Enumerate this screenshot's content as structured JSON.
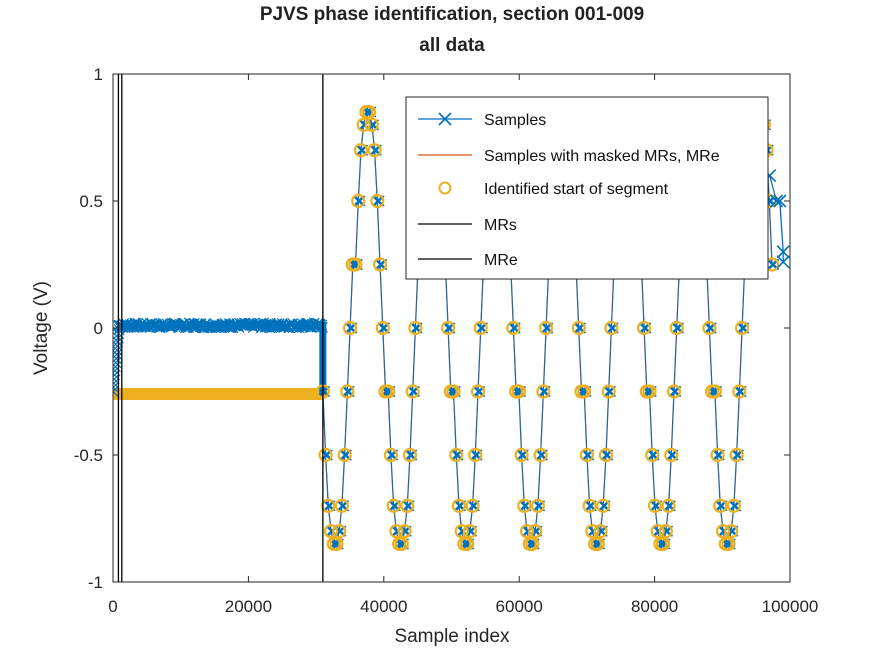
{
  "chart_data": {
    "type": "line",
    "title": "PJVS phase identification, section 001-009",
    "subtitle": "all data",
    "xlabel": "Sample index",
    "ylabel": "Voltage (V)",
    "xlim": [
      0,
      100000
    ],
    "ylim": [
      -1,
      1
    ],
    "x_ticks": [
      0,
      20000,
      40000,
      60000,
      80000,
      100000
    ],
    "x_tick_labels": [
      "0",
      "20000",
      "40000",
      "60000",
      "80000",
      "100000"
    ],
    "y_ticks": [
      -1,
      -0.5,
      0,
      0.5,
      1
    ],
    "y_tick_labels": [
      "-1",
      "-0.5",
      "0",
      "0.5",
      "1"
    ],
    "grid": false,
    "legend_position": "top-right",
    "colors": {
      "samples": "#0072BD",
      "masked": "#D95319",
      "segment_start": "#EDB120",
      "markers": "#000000"
    },
    "series": [
      {
        "name": "Samples",
        "marker": "x",
        "description_values": {
          "flat_region": {
            "x_range": [
              800,
              31000
            ],
            "level": 0.01
          },
          "startup_region": {
            "x_range": [
              0,
              800
            ],
            "level": -0.25
          },
          "waveform": {
            "x_range": [
              31000,
              97500
            ],
            "period": 9650,
            "phase_peak_x": 37600,
            "amplitude": 0.85,
            "step_levels": [
              -0.85,
              -0.8,
              -0.7,
              -0.5,
              -0.25,
              0.0,
              0.25,
              0.5,
              0.7,
              0.8,
              0.85
            ]
          },
          "tail": {
            "x_range": [
              97500,
              100000
            ],
            "points": [
              [
                97000,
                0.6
              ],
              [
                98000,
                0.5
              ],
              [
                98500,
                0.5
              ],
              [
                99000,
                0.3
              ],
              [
                99000,
                0.26
              ]
            ]
          }
        }
      },
      {
        "name": "Samples with masked MRs, MRe",
        "marker": "line",
        "description_values": {
          "x_range": [
            31000,
            97500
          ],
          "period": 9650,
          "amplitude": 0.85
        }
      },
      {
        "name": "Identified start of segment",
        "marker": "o",
        "description_values": {
          "baseline": {
            "x_range": [
              0,
              31000
            ],
            "level": -0.26
          },
          "waveform_levels": [
            -0.85,
            -0.8,
            -0.7,
            -0.5,
            -0.25,
            0.0,
            0.25,
            0.5,
            0.7,
            0.8,
            0.85
          ]
        }
      },
      {
        "name": "MRs",
        "type": "vline",
        "x": [
          800,
          31000
        ]
      },
      {
        "name": "MRe",
        "type": "vline",
        "x": [
          1300
        ]
      }
    ],
    "legend": [
      "Samples",
      "Samples with masked MRs, MRe",
      "Identified start of segment",
      "MRs",
      "MRe"
    ]
  }
}
